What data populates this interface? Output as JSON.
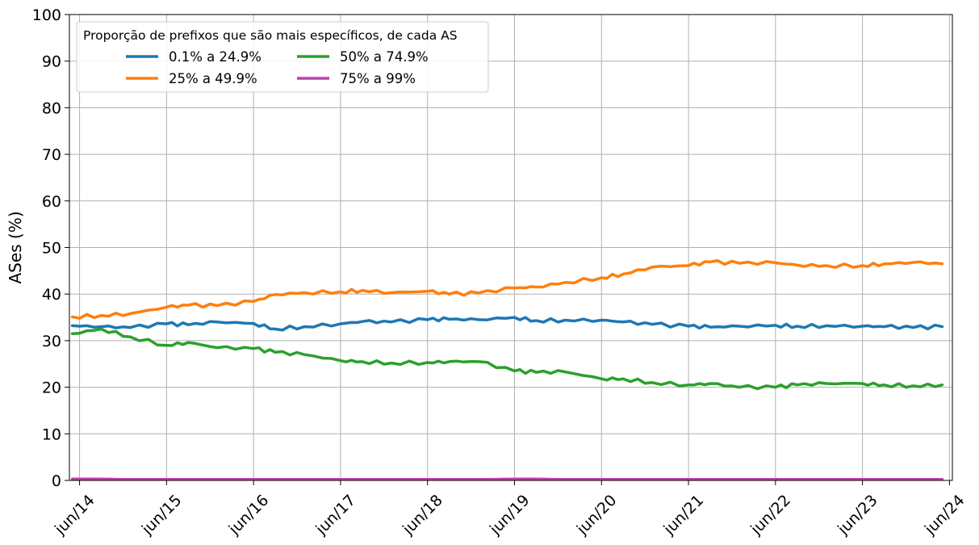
{
  "chart_data": {
    "type": "line",
    "ylabel": "ASes (%)",
    "xlabel": "",
    "ylim": [
      0,
      100
    ],
    "yticks": [
      0,
      10,
      20,
      30,
      40,
      50,
      60,
      70,
      80,
      90,
      100
    ],
    "xlim": [
      "2014-05",
      "2024-06"
    ],
    "xticks": [
      "jun/14",
      "jun/15",
      "jun/16",
      "jun/17",
      "jun/18",
      "jun/19",
      "jun/20",
      "jun/21",
      "jun/22",
      "jun/23",
      "jun/24"
    ],
    "grid": true,
    "legend": {
      "title": "Proporção de prefixos que são mais específicos, de cada AS",
      "position": "top-left",
      "columns": 2
    },
    "series": [
      {
        "name": "0.1% a 24.9%",
        "color": "#1f77b4",
        "x": [
          "2014-05",
          "2014-09",
          "2015-01",
          "2015-06",
          "2015-09",
          "2016-01",
          "2016-06",
          "2016-09",
          "2017-01",
          "2017-06",
          "2017-09",
          "2018-01",
          "2018-06",
          "2018-09",
          "2019-01",
          "2019-06",
          "2019-09",
          "2020-01",
          "2020-06",
          "2020-09",
          "2021-01",
          "2021-06",
          "2021-09",
          "2022-01",
          "2022-06",
          "2022-09",
          "2023-01",
          "2023-06",
          "2023-09",
          "2024-01",
          "2024-05"
        ],
        "y": [
          33.2,
          33.0,
          32.8,
          33.6,
          33.4,
          34.0,
          33.7,
          32.5,
          33.0,
          33.6,
          34.1,
          34.0,
          34.5,
          34.6,
          34.5,
          35.0,
          34.3,
          34.4,
          34.4,
          34.0,
          33.5,
          33.1,
          32.9,
          33.1,
          33.3,
          33.1,
          33.2,
          33.1,
          33.0,
          32.8,
          33.0
        ]
      },
      {
        "name": "25% a 49.9%",
        "color": "#ff7f0e",
        "x": [
          "2014-05",
          "2014-09",
          "2015-01",
          "2015-06",
          "2015-09",
          "2016-01",
          "2016-06",
          "2016-09",
          "2017-01",
          "2017-06",
          "2017-09",
          "2018-01",
          "2018-06",
          "2018-09",
          "2019-01",
          "2019-06",
          "2019-09",
          "2020-01",
          "2020-06",
          "2020-09",
          "2021-01",
          "2021-06",
          "2021-09",
          "2022-01",
          "2022-06",
          "2022-09",
          "2023-01",
          "2023-06",
          "2023-09",
          "2024-01",
          "2024-05"
        ],
        "y": [
          35.1,
          35.4,
          35.8,
          37.2,
          37.6,
          37.5,
          38.4,
          39.9,
          40.3,
          40.5,
          40.8,
          40.3,
          40.6,
          40.0,
          40.2,
          41.3,
          41.5,
          42.5,
          43.5,
          44.3,
          45.8,
          46.1,
          46.9,
          46.6,
          46.7,
          46.2,
          46.1,
          46.1,
          46.5,
          46.8,
          46.5
        ]
      },
      {
        "name": "50% a 74.9%",
        "color": "#2ca02c",
        "x": [
          "2014-05",
          "2014-09",
          "2015-01",
          "2015-06",
          "2015-09",
          "2016-01",
          "2016-06",
          "2016-09",
          "2017-01",
          "2017-06",
          "2017-09",
          "2018-01",
          "2018-06",
          "2018-09",
          "2019-01",
          "2019-06",
          "2019-09",
          "2020-01",
          "2020-06",
          "2020-09",
          "2021-01",
          "2021-06",
          "2021-09",
          "2022-01",
          "2022-06",
          "2022-09",
          "2023-01",
          "2023-06",
          "2023-09",
          "2024-01",
          "2024-05"
        ],
        "y": [
          31.5,
          32.5,
          30.8,
          29.0,
          29.6,
          28.5,
          28.3,
          27.5,
          27.0,
          25.7,
          25.5,
          25.2,
          25.3,
          25.5,
          25.5,
          23.5,
          23.2,
          23.3,
          21.8,
          21.8,
          21.0,
          20.5,
          20.8,
          20.0,
          20.0,
          20.5,
          20.8,
          20.8,
          20.5,
          20.3,
          20.5
        ]
      },
      {
        "name": "75% a 99%",
        "color": "#c03fb0",
        "x": [
          "2014-05",
          "2014-09",
          "2015-01",
          "2015-06",
          "2015-09",
          "2016-01",
          "2016-06",
          "2016-09",
          "2017-01",
          "2017-06",
          "2017-09",
          "2018-01",
          "2018-06",
          "2018-09",
          "2019-01",
          "2019-06",
          "2019-09",
          "2020-01",
          "2020-06",
          "2020-09",
          "2021-01",
          "2021-06",
          "2021-09",
          "2022-01",
          "2022-06",
          "2022-09",
          "2023-01",
          "2023-06",
          "2023-09",
          "2024-01",
          "2024-05"
        ],
        "y": [
          0.3,
          0.3,
          0.2,
          0.2,
          0.2,
          0.2,
          0.2,
          0.2,
          0.2,
          0.2,
          0.2,
          0.2,
          0.2,
          0.2,
          0.2,
          0.3,
          0.3,
          0.2,
          0.2,
          0.2,
          0.2,
          0.2,
          0.2,
          0.2,
          0.2,
          0.2,
          0.2,
          0.2,
          0.2,
          0.2,
          0.2
        ]
      }
    ]
  }
}
